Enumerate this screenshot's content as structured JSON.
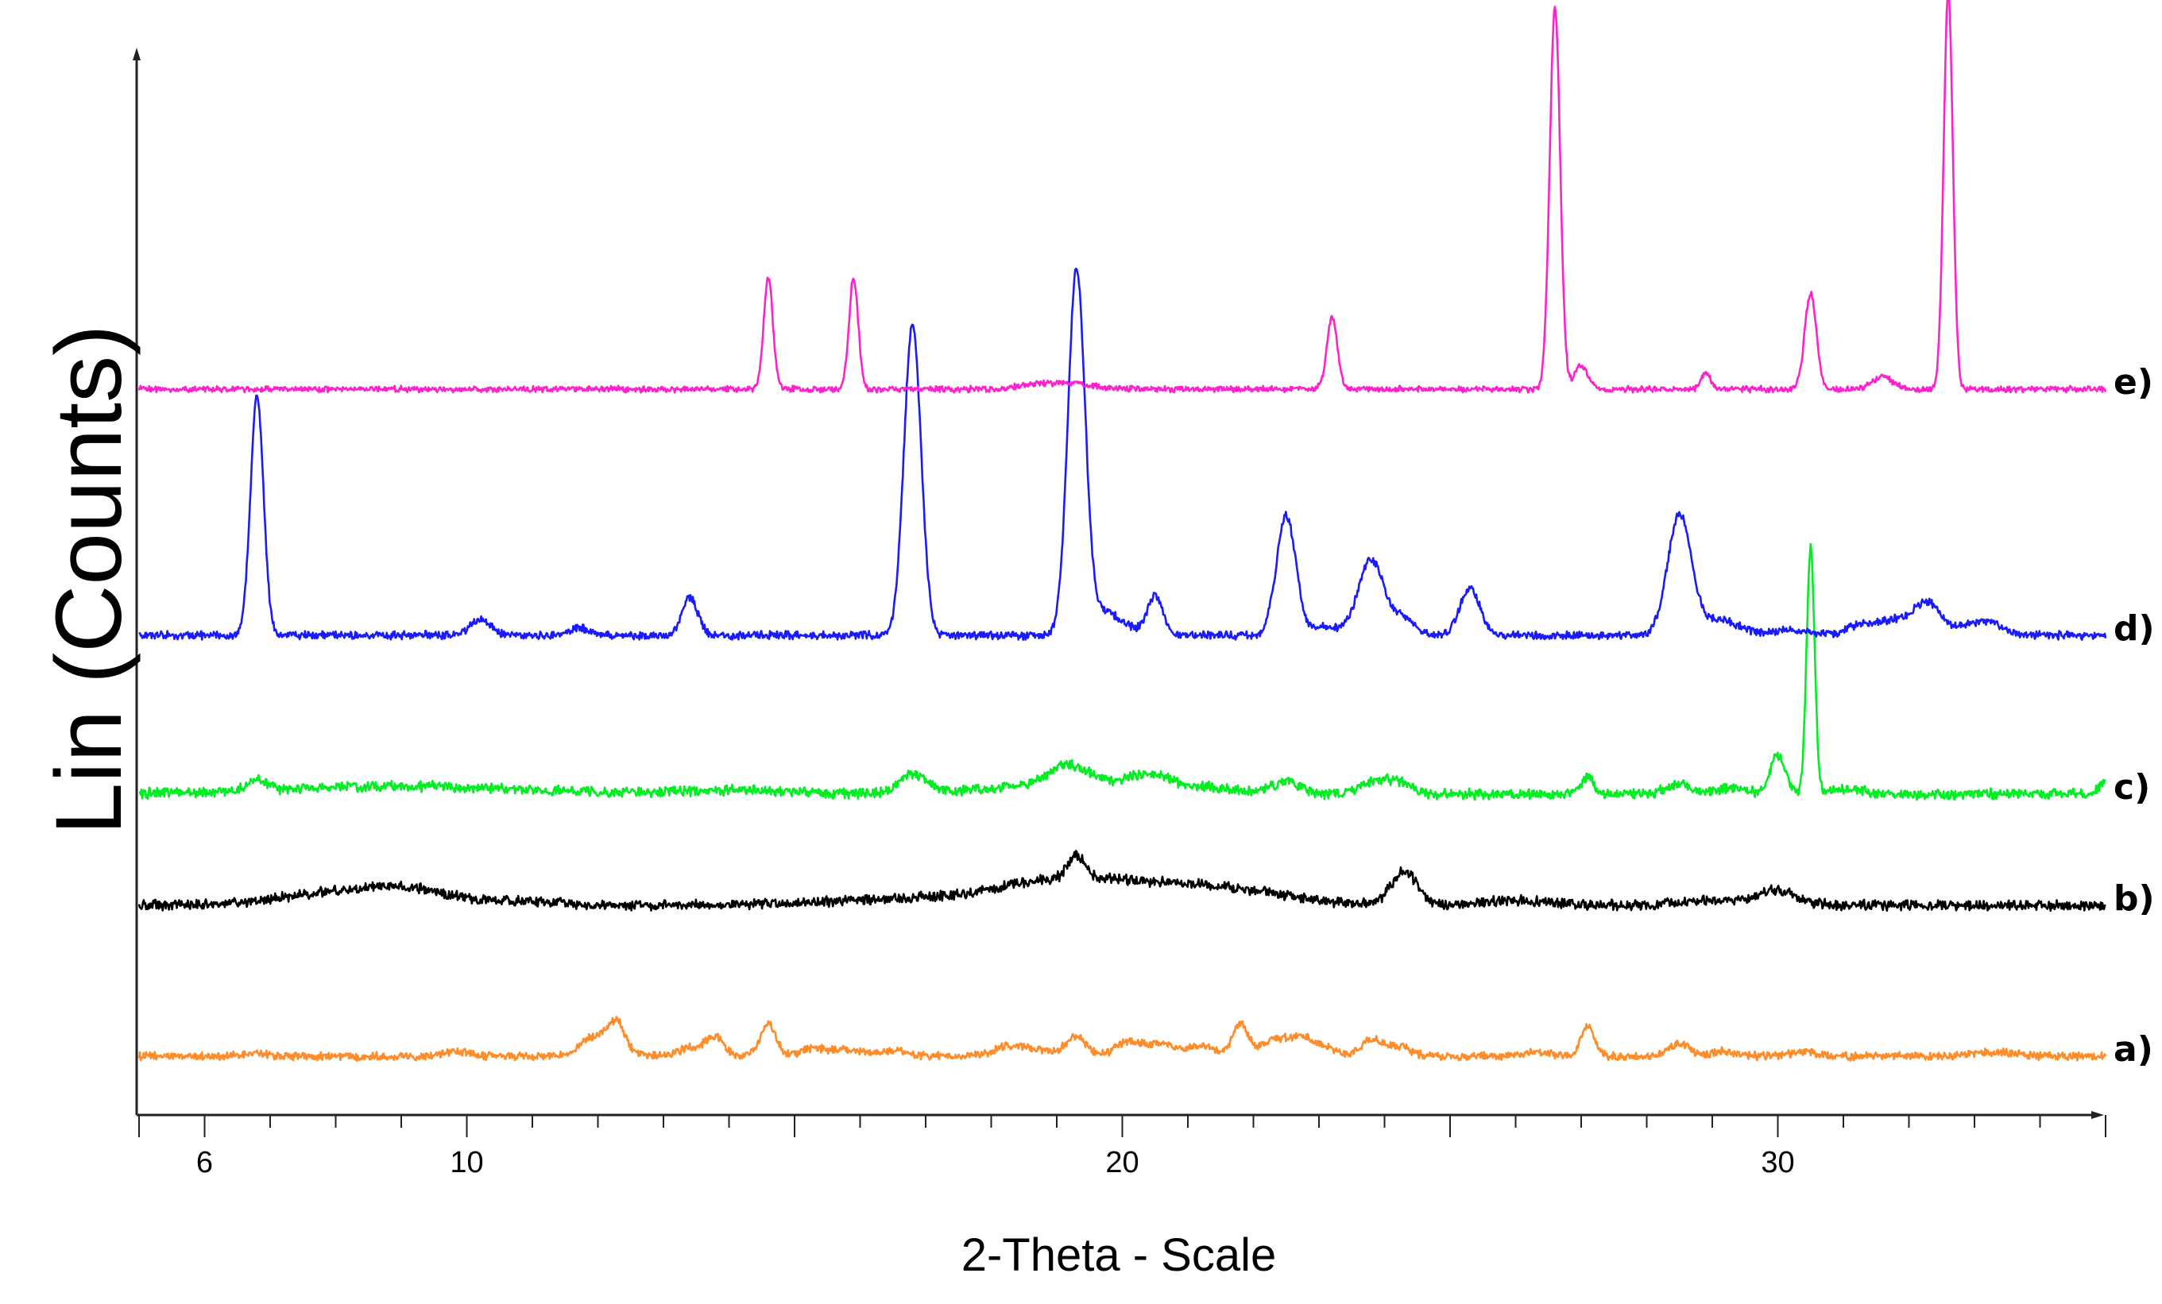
{
  "chart_data": {
    "type": "line",
    "title": "",
    "xlabel": "2-Theta - Scale",
    "ylabel": "Lin (Counts)",
    "xlim": [
      5,
      35
    ],
    "xticks": [
      {
        "value": 6,
        "label": "6"
      },
      {
        "value": 10,
        "label": "10"
      },
      {
        "value": 20,
        "label": "20"
      },
      {
        "value": 30,
        "label": "30"
      }
    ],
    "grid": false,
    "legend": "none",
    "series": [
      {
        "name": "a)",
        "color": "#ff8c28",
        "baseline": 40,
        "noise": 4,
        "peaks": [
          [
            6.8,
            4,
            0.15
          ],
          [
            9.8,
            6,
            0.2
          ],
          [
            12.0,
            26,
            0.25
          ],
          [
            12.3,
            32,
            0.12
          ],
          [
            13.5,
            12,
            0.25
          ],
          [
            13.8,
            20,
            0.12
          ],
          [
            14.6,
            40,
            0.12
          ],
          [
            15.3,
            10,
            0.2
          ],
          [
            15.8,
            8,
            0.2
          ],
          [
            16.5,
            8,
            0.2
          ],
          [
            18.2,
            8,
            0.2
          ],
          [
            18.6,
            10,
            0.3
          ],
          [
            19.3,
            24,
            0.15
          ],
          [
            20.1,
            18,
            0.2
          ],
          [
            20.6,
            16,
            0.2
          ],
          [
            21.2,
            14,
            0.2
          ],
          [
            21.8,
            40,
            0.12
          ],
          [
            22.3,
            18,
            0.2
          ],
          [
            22.7,
            18,
            0.2
          ],
          [
            23.0,
            10,
            0.25
          ],
          [
            23.8,
            20,
            0.15
          ],
          [
            24.2,
            12,
            0.2
          ],
          [
            26.3,
            6,
            0.2
          ],
          [
            27.1,
            38,
            0.1
          ],
          [
            28.5,
            16,
            0.15
          ],
          [
            29.2,
            6,
            0.2
          ],
          [
            30.4,
            6,
            0.2
          ],
          [
            33.3,
            5,
            0.3
          ]
        ]
      },
      {
        "name": "b)",
        "color": "#000000",
        "baseline": 230,
        "noise": 5,
        "peaks": [
          [
            8.2,
            16,
            1.0
          ],
          [
            9.2,
            12,
            0.7
          ],
          [
            11.0,
            5,
            0.4
          ],
          [
            17.0,
            8,
            1.5
          ],
          [
            19.0,
            22,
            0.9
          ],
          [
            19.3,
            28,
            0.12
          ],
          [
            20.5,
            20,
            1.2
          ],
          [
            21.8,
            10,
            0.9
          ],
          [
            24.3,
            42,
            0.2
          ],
          [
            26.0,
            6,
            0.5
          ],
          [
            29.0,
            6,
            0.5
          ],
          [
            30.0,
            18,
            0.3
          ]
        ]
      },
      {
        "name": "c)",
        "color": "#00ee22",
        "baseline": 370,
        "noise": 5,
        "peaks": [
          [
            6.8,
            14,
            0.15
          ],
          [
            9.0,
            10,
            1.8
          ],
          [
            14.0,
            5,
            0.8
          ],
          [
            16.8,
            24,
            0.2
          ],
          [
            18.5,
            8,
            1.0
          ],
          [
            19.2,
            30,
            0.35
          ],
          [
            20.3,
            18,
            0.35
          ],
          [
            21.0,
            10,
            0.6
          ],
          [
            22.5,
            16,
            0.2
          ],
          [
            23.8,
            14,
            0.2
          ],
          [
            24.2,
            16,
            0.2
          ],
          [
            27.1,
            20,
            0.1
          ],
          [
            28.5,
            12,
            0.2
          ],
          [
            29.3,
            8,
            0.2
          ],
          [
            30.0,
            48,
            0.12
          ],
          [
            30.5,
            310,
            0.06
          ],
          [
            31.0,
            6,
            0.3
          ],
          [
            35.0,
            16,
            0.1
          ]
        ]
      },
      {
        "name": "d)",
        "color": "#1a1aff",
        "baseline": 570,
        "noise": 4,
        "peaks": [
          [
            6.8,
            300,
            0.1
          ],
          [
            10.2,
            20,
            0.15
          ],
          [
            11.7,
            10,
            0.15
          ],
          [
            13.4,
            48,
            0.12
          ],
          [
            16.8,
            390,
            0.13
          ],
          [
            19.3,
            450,
            0.13
          ],
          [
            19.7,
            30,
            0.3
          ],
          [
            20.5,
            48,
            0.12
          ],
          [
            22.5,
            150,
            0.15
          ],
          [
            23.1,
            10,
            0.2
          ],
          [
            23.8,
            95,
            0.2
          ],
          [
            24.3,
            20,
            0.15
          ],
          [
            25.3,
            60,
            0.15
          ],
          [
            28.5,
            150,
            0.18
          ],
          [
            29.1,
            20,
            0.3
          ],
          [
            30.2,
            6,
            0.3
          ],
          [
            31.2,
            8,
            0.2
          ],
          [
            31.8,
            20,
            0.35
          ],
          [
            32.3,
            34,
            0.2
          ],
          [
            33.1,
            18,
            0.3
          ]
        ]
      },
      {
        "name": "e)",
        "color": "#ff22cc",
        "baseline": 880,
        "noise": 3,
        "peaks": [
          [
            14.6,
            140,
            0.07
          ],
          [
            15.9,
            140,
            0.07
          ],
          [
            18.7,
            6,
            0.3
          ],
          [
            19.3,
            6,
            0.3
          ],
          [
            23.2,
            90,
            0.08
          ],
          [
            26.6,
            480,
            0.08
          ],
          [
            27.0,
            30,
            0.1
          ],
          [
            28.9,
            20,
            0.07
          ],
          [
            30.5,
            120,
            0.09
          ],
          [
            31.6,
            16,
            0.15
          ],
          [
            32.6,
            500,
            0.07
          ]
        ]
      }
    ]
  }
}
